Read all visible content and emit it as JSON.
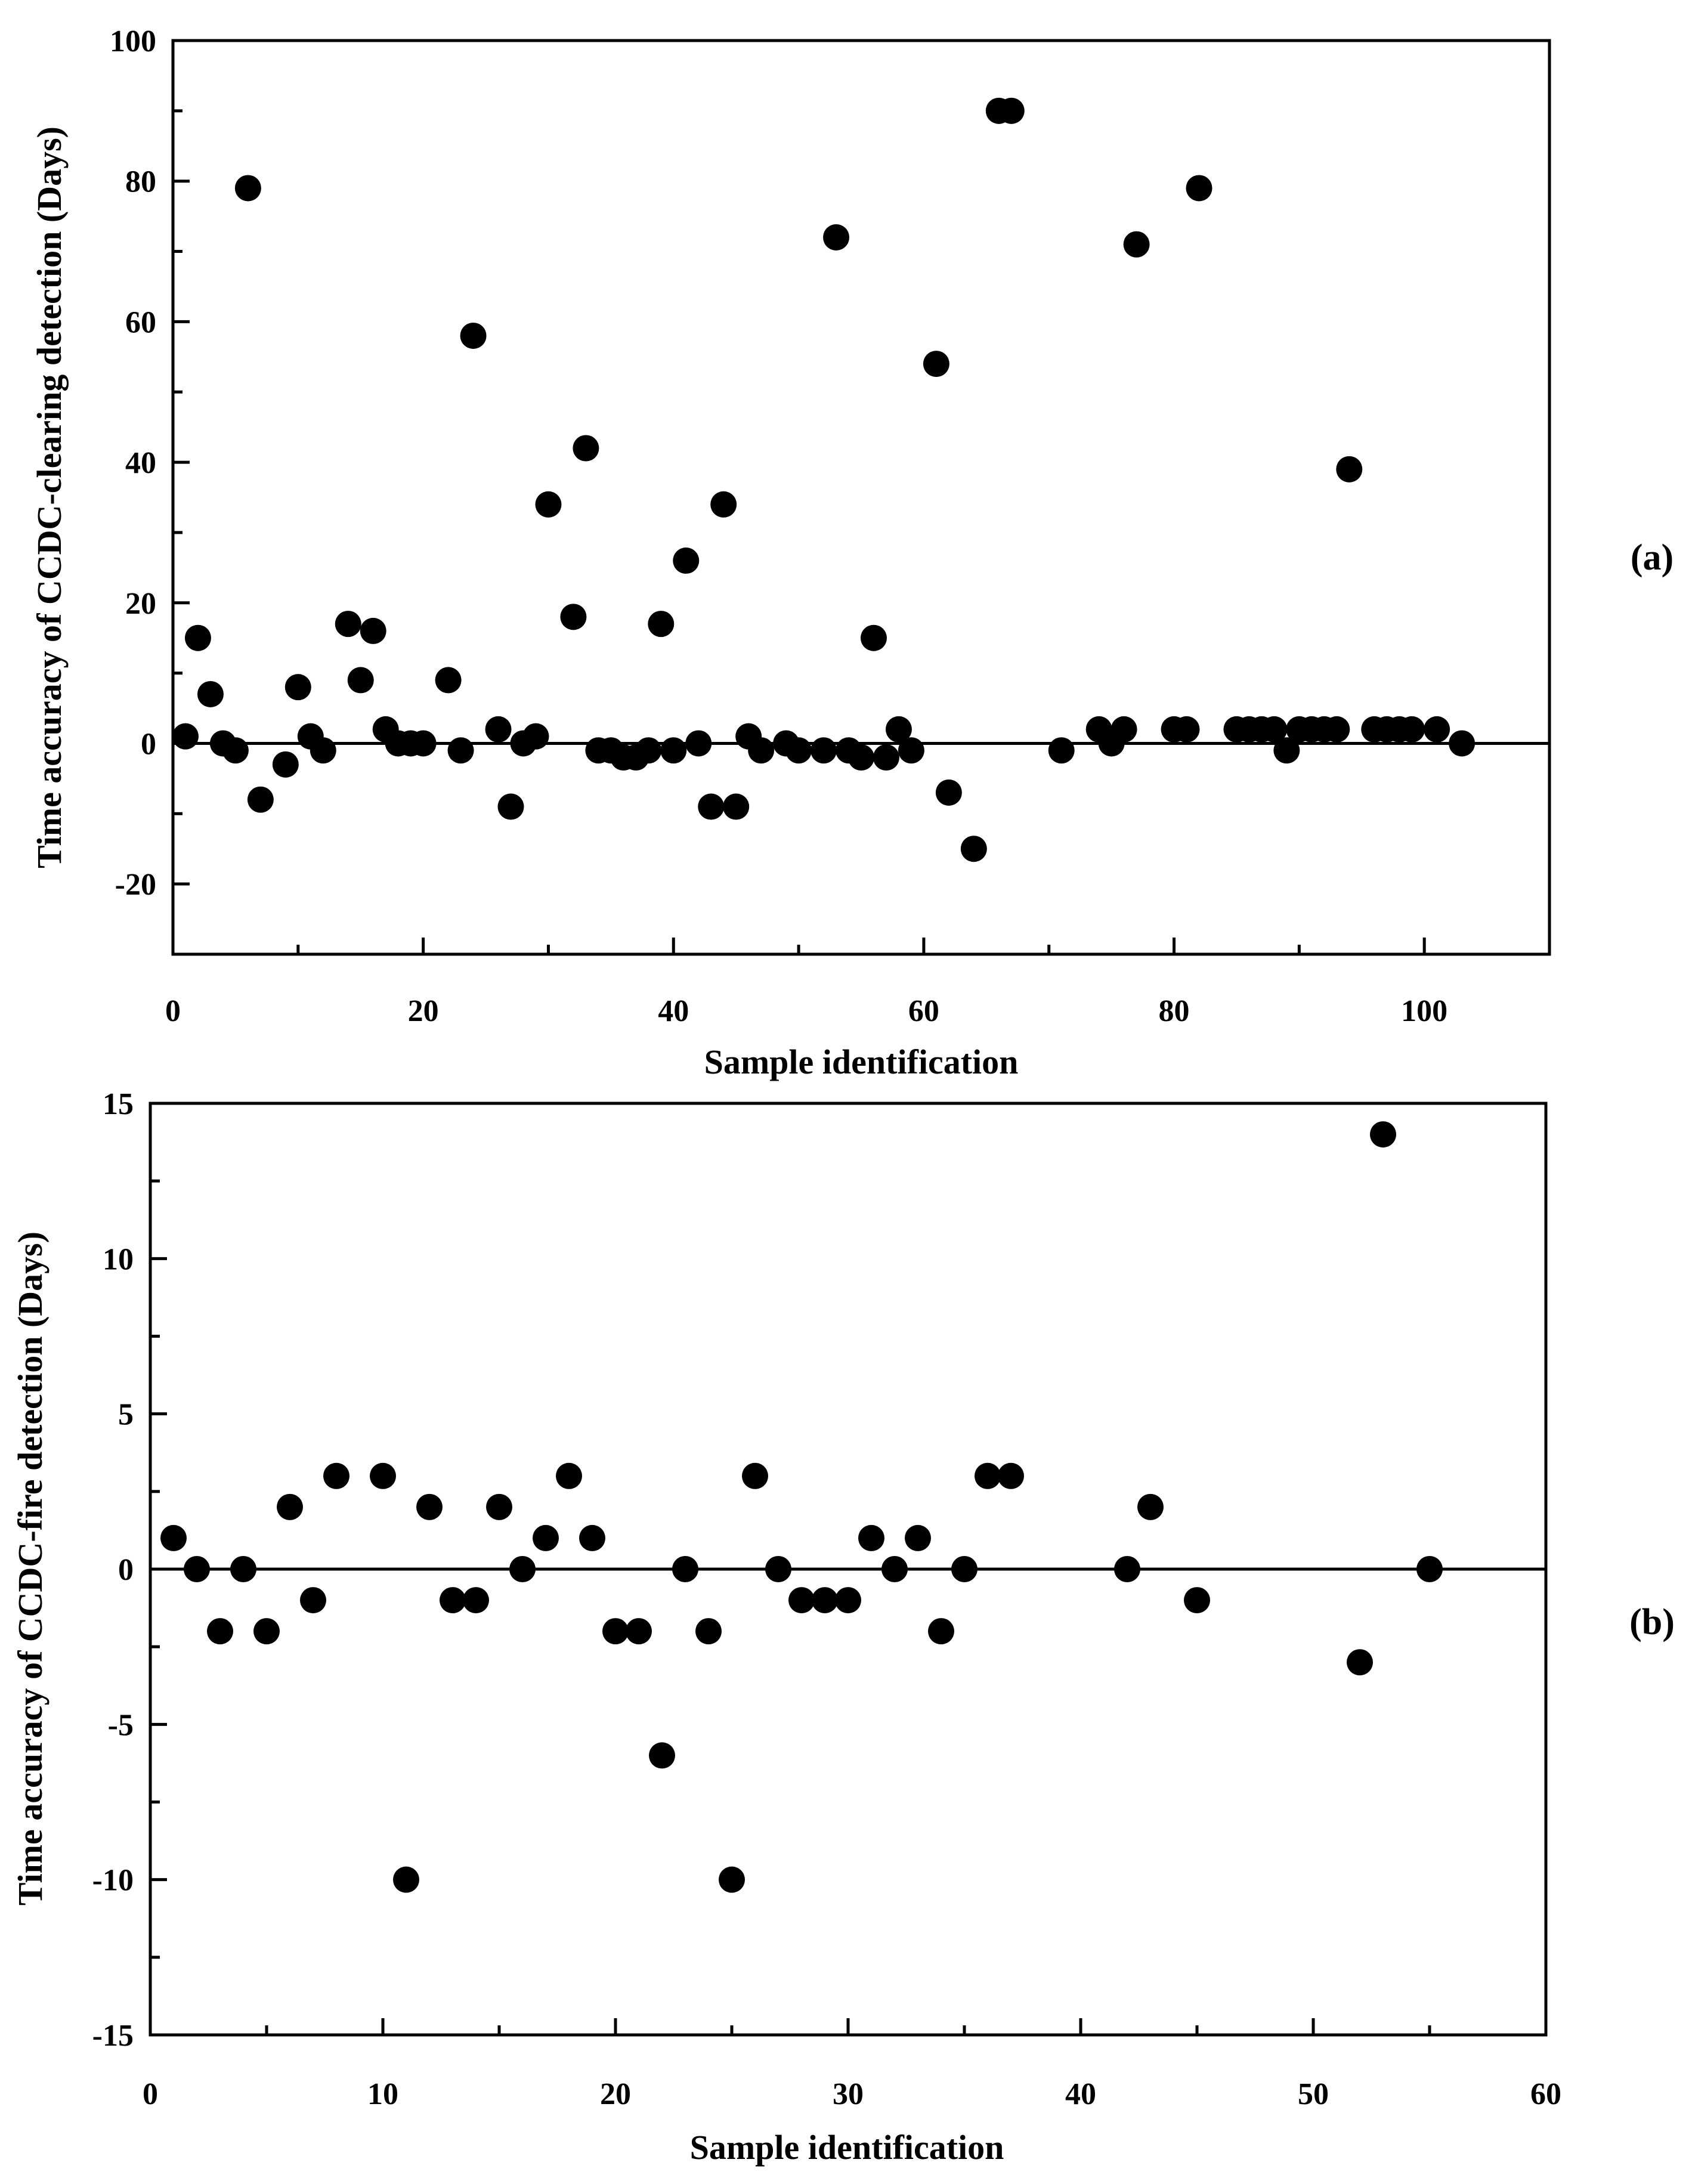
{
  "chart_data": [
    {
      "type": "scatter",
      "panel_label": "(a)",
      "title": "",
      "xlabel": "Sample identification",
      "ylabel": "Time accuracy of CCDC-clearing detection (Days)",
      "xlim": [
        0,
        110
      ],
      "ylim": [
        -30,
        100
      ],
      "xticks": [
        0,
        20,
        40,
        60,
        80,
        100
      ],
      "yticks": [
        -20,
        0,
        20,
        40,
        60,
        80,
        100
      ],
      "xtick_labels": [
        "0",
        "20",
        "40",
        "60",
        "80",
        "100"
      ],
      "ytick_labels": [
        "-20",
        "0",
        "20",
        "40",
        "60",
        "80",
        "100"
      ],
      "reference_line_y": 0,
      "points": [
        [
          1,
          1
        ],
        [
          2,
          15
        ],
        [
          3,
          7
        ],
        [
          4,
          0
        ],
        [
          5,
          -1
        ],
        [
          6,
          79
        ],
        [
          7,
          -8
        ],
        [
          9,
          -3
        ],
        [
          10,
          8
        ],
        [
          11,
          1
        ],
        [
          12,
          -1
        ],
        [
          14,
          17
        ],
        [
          15,
          9
        ],
        [
          16,
          16
        ],
        [
          17,
          2
        ],
        [
          18,
          0
        ],
        [
          19,
          0
        ],
        [
          20,
          0
        ],
        [
          22,
          9
        ],
        [
          23,
          -1
        ],
        [
          24,
          58
        ],
        [
          26,
          2
        ],
        [
          27,
          -9
        ],
        [
          28,
          0
        ],
        [
          29,
          1
        ],
        [
          30,
          34
        ],
        [
          32,
          18
        ],
        [
          33,
          42
        ],
        [
          34,
          -1
        ],
        [
          35,
          -1
        ],
        [
          36,
          -2
        ],
        [
          37,
          -2
        ],
        [
          38,
          -1
        ],
        [
          39,
          17
        ],
        [
          40,
          -1
        ],
        [
          41,
          26
        ],
        [
          42,
          0
        ],
        [
          43,
          -9
        ],
        [
          44,
          34
        ],
        [
          45,
          -9
        ],
        [
          46,
          1
        ],
        [
          47,
          -1
        ],
        [
          49,
          0
        ],
        [
          50,
          -1
        ],
        [
          52,
          -1
        ],
        [
          53,
          72
        ],
        [
          54,
          -1
        ],
        [
          55,
          -2
        ],
        [
          56,
          15
        ],
        [
          57,
          -2
        ],
        [
          58,
          2
        ],
        [
          59,
          -1
        ],
        [
          61,
          54
        ],
        [
          62,
          -7
        ],
        [
          64,
          -15
        ],
        [
          66,
          90
        ],
        [
          67,
          90
        ],
        [
          71,
          -1
        ],
        [
          74,
          2
        ],
        [
          75,
          0
        ],
        [
          76,
          2
        ],
        [
          77,
          71
        ],
        [
          80,
          2
        ],
        [
          81,
          2
        ],
        [
          82,
          79
        ],
        [
          85,
          2
        ],
        [
          86,
          2
        ],
        [
          87,
          2
        ],
        [
          88,
          2
        ],
        [
          89,
          -1
        ],
        [
          90,
          2
        ],
        [
          91,
          2
        ],
        [
          92,
          2
        ],
        [
          93,
          2
        ],
        [
          94,
          39
        ],
        [
          96,
          2
        ],
        [
          97,
          2
        ],
        [
          98,
          2
        ],
        [
          99,
          2
        ],
        [
          101,
          2
        ],
        [
          103,
          0
        ]
      ]
    },
    {
      "type": "scatter",
      "panel_label": "(b)",
      "title": "",
      "xlabel": "Sample identification",
      "ylabel": "Time accuracy of CCDC-fire detection (Days)",
      "xlim": [
        0,
        60
      ],
      "ylim": [
        -15,
        15
      ],
      "xticks": [
        0,
        10,
        20,
        30,
        40,
        50,
        60
      ],
      "yticks": [
        -15,
        -10,
        -5,
        0,
        5,
        10,
        15
      ],
      "xtick_labels": [
        "0",
        "10",
        "20",
        "30",
        "40",
        "50",
        "60"
      ],
      "ytick_labels": [
        "-15",
        "-10",
        "-5",
        "0",
        "5",
        "10",
        "15"
      ],
      "reference_line_y": 0,
      "points": [
        [
          1,
          1
        ],
        [
          2,
          0
        ],
        [
          3,
          -2
        ],
        [
          4,
          0
        ],
        [
          5,
          -2
        ],
        [
          6,
          2
        ],
        [
          7,
          -1
        ],
        [
          8,
          3
        ],
        [
          10,
          3
        ],
        [
          11,
          -10
        ],
        [
          12,
          2
        ],
        [
          13,
          -1
        ],
        [
          14,
          -1
        ],
        [
          15,
          2
        ],
        [
          16,
          0
        ],
        [
          17,
          1
        ],
        [
          18,
          3
        ],
        [
          19,
          1
        ],
        [
          20,
          -2
        ],
        [
          21,
          -2
        ],
        [
          22,
          -6
        ],
        [
          23,
          0
        ],
        [
          24,
          -2
        ],
        [
          25,
          -10
        ],
        [
          26,
          3
        ],
        [
          27,
          0
        ],
        [
          28,
          -1
        ],
        [
          29,
          -1
        ],
        [
          30,
          -1
        ],
        [
          31,
          1
        ],
        [
          32,
          0
        ],
        [
          33,
          1
        ],
        [
          34,
          -2
        ],
        [
          35,
          0
        ],
        [
          36,
          3
        ],
        [
          37,
          3
        ],
        [
          42,
          0
        ],
        [
          43,
          2
        ],
        [
          45,
          -1
        ],
        [
          52,
          -3
        ],
        [
          53,
          14
        ],
        [
          55,
          0
        ]
      ]
    }
  ]
}
